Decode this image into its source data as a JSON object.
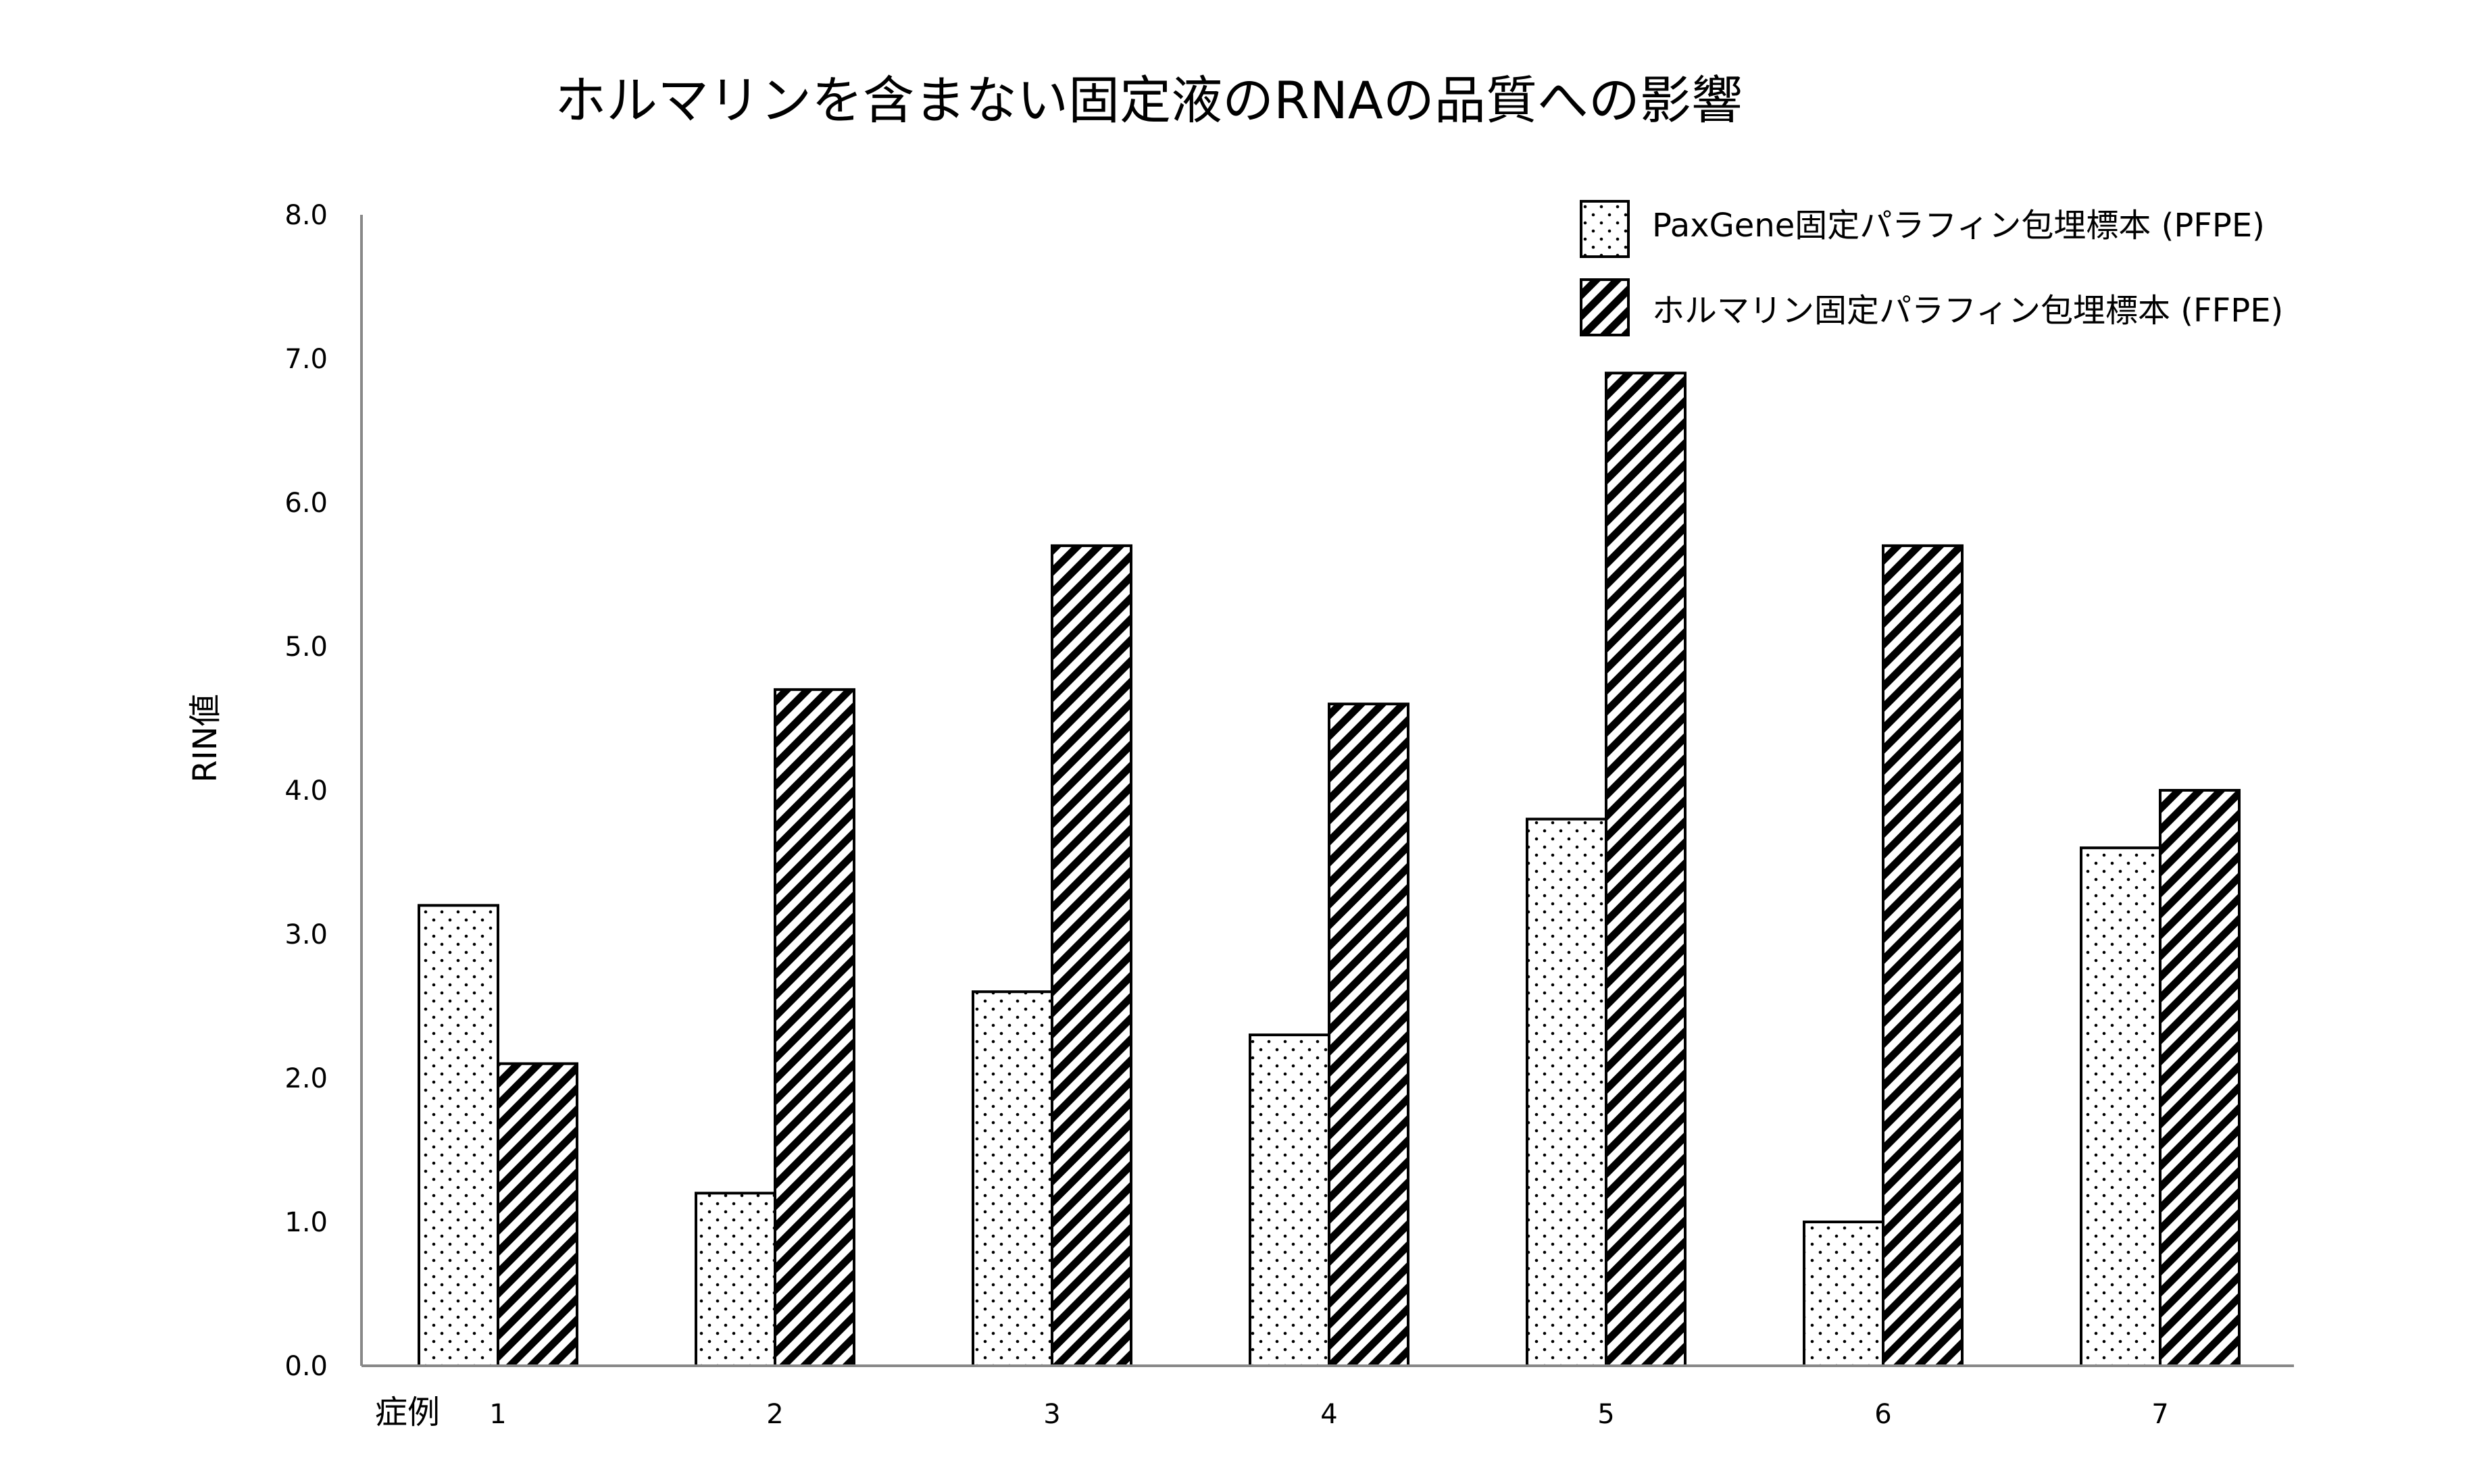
{
  "chart_data": {
    "type": "bar",
    "title": "ホルマリンを含まない固定液のRNAの品質への影響",
    "xlabel": "症例",
    "ylabel": "RIN値",
    "categories": [
      "1",
      "2",
      "3",
      "4",
      "5",
      "6",
      "7"
    ],
    "yticks": [
      "0.0",
      "1.0",
      "2.0",
      "3.0",
      "4.0",
      "5.0",
      "6.0",
      "7.0",
      "8.0"
    ],
    "ylim": [
      0,
      8
    ],
    "legend_position": "top-right",
    "grid": false,
    "series": [
      {
        "name": "PaxGene固定パラフィン包埋標本 (PFPE)",
        "pattern": "dots",
        "values": [
          3.2,
          1.2,
          2.6,
          2.3,
          3.8,
          1.0,
          3.6
        ]
      },
      {
        "name": "ホルマリン固定パラフィン包埋標本 (FFPE)",
        "pattern": "diagonal-hatch",
        "values": [
          2.1,
          4.7,
          5.7,
          4.6,
          6.9,
          5.7,
          4.0
        ]
      }
    ]
  }
}
